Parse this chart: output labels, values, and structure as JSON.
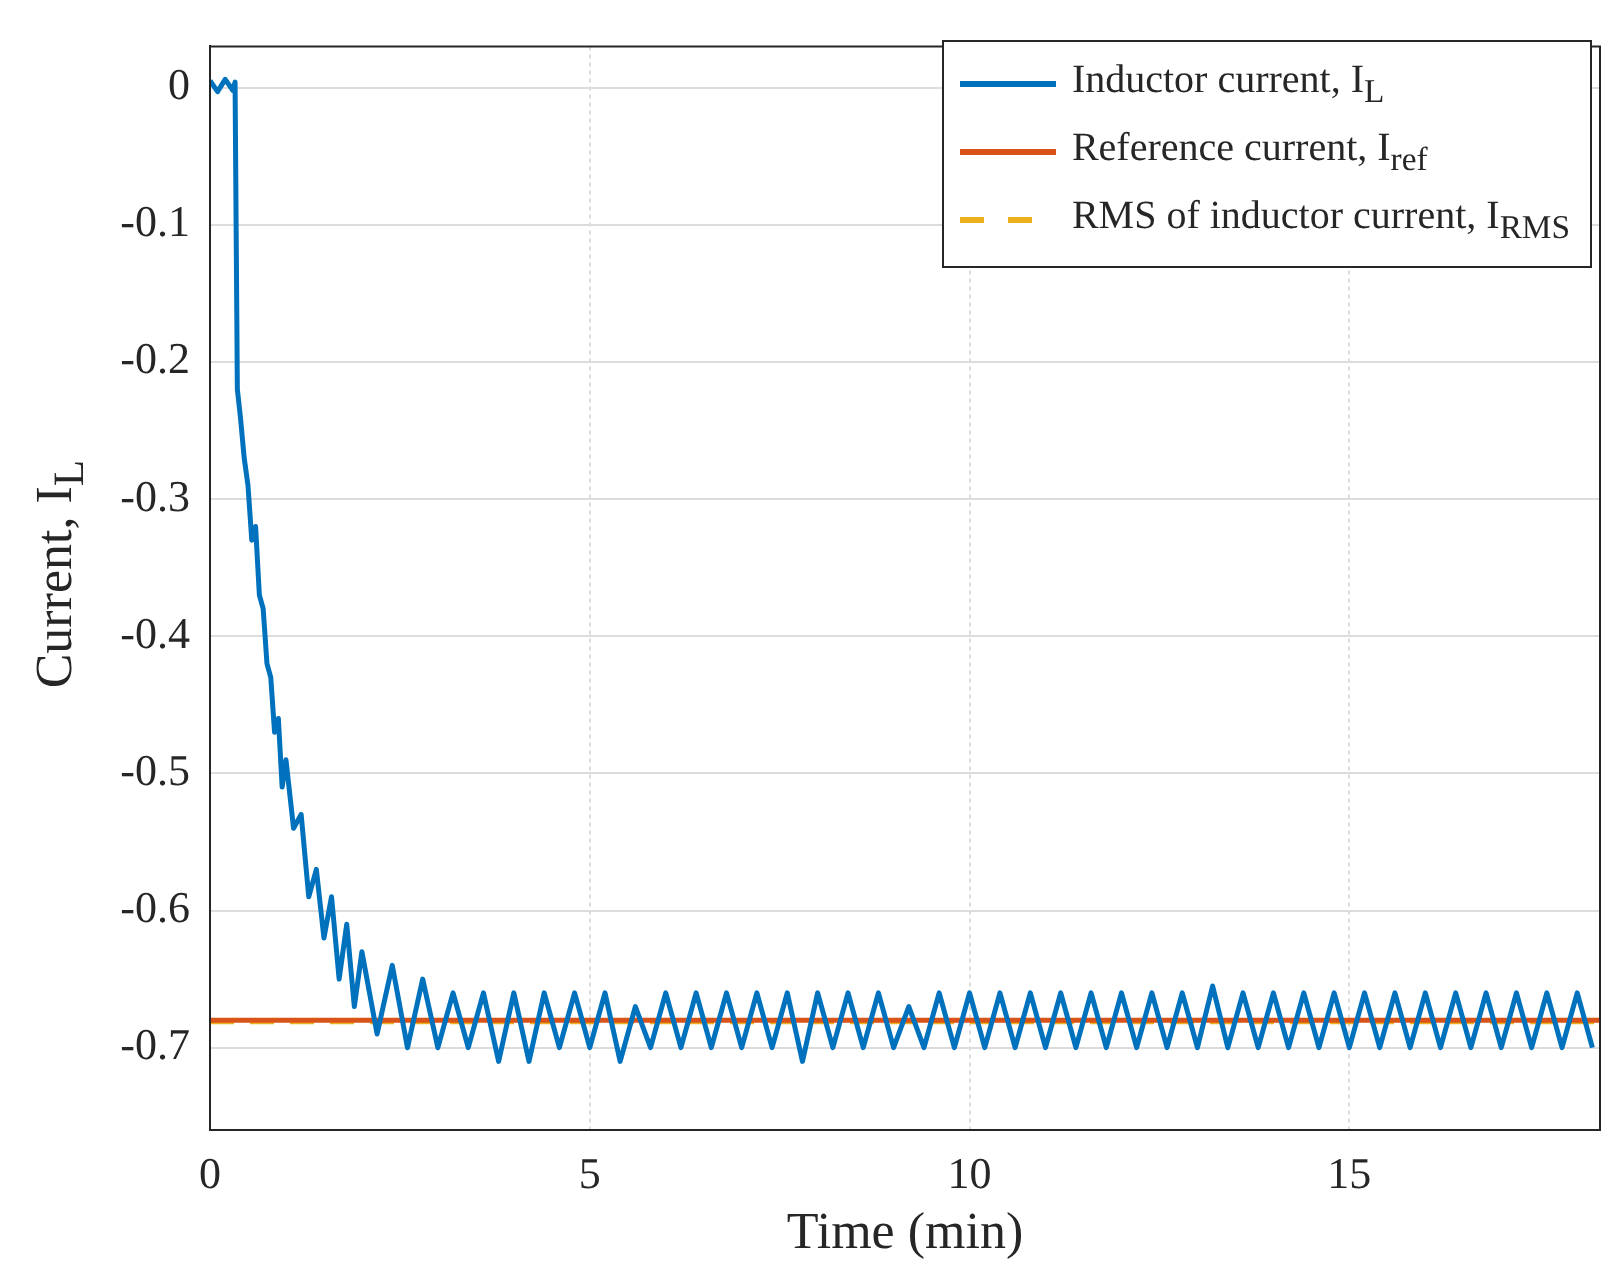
{
  "chart_data": {
    "type": "line",
    "xlabel": "Time (min)",
    "ylabel": "Current, I$_{L}$",
    "xlim": [
      0,
      18.3
    ],
    "ylim": [
      -0.76,
      0.03
    ],
    "xticks": [
      0,
      5,
      10,
      15
    ],
    "yticks": [
      -0.7,
      -0.6,
      -0.5,
      -0.4,
      -0.3,
      -0.2,
      -0.1,
      0
    ],
    "grid": true,
    "legend": "top right",
    "marker": "none",
    "series": [
      {
        "name": "Inductor current, I$_{L}$",
        "color": "#0072bd",
        "line_style": "solid",
        "x": [
          0,
          0.1,
          0.2,
          0.3,
          0.33,
          0.36,
          0.4,
          0.45,
          0.5,
          0.55,
          0.6,
          0.65,
          0.7,
          0.75,
          0.8,
          0.85,
          0.9,
          0.95,
          1.0,
          1.1,
          1.2,
          1.3,
          1.4,
          1.5,
          1.6,
          1.7,
          1.8,
          1.9,
          2.0,
          2.2,
          2.4,
          2.6,
          2.8,
          3.0,
          3.2,
          3.4,
          3.6,
          3.8,
          4.0,
          4.2,
          4.4,
          4.6,
          4.8,
          5.0,
          5.2,
          5.4,
          5.6,
          5.8,
          6.0,
          6.2,
          6.4,
          6.6,
          6.8,
          7.0,
          7.2,
          7.4,
          7.6,
          7.8,
          8.0,
          8.2,
          8.4,
          8.6,
          8.8,
          9.0,
          9.2,
          9.4,
          9.6,
          9.8,
          10.0,
          10.2,
          10.4,
          10.6,
          10.8,
          11.0,
          11.2,
          11.4,
          11.6,
          11.8,
          12.0,
          12.2,
          12.4,
          12.6,
          12.8,
          13.0,
          13.2,
          13.4,
          13.6,
          13.8,
          14.0,
          14.2,
          14.4,
          14.6,
          14.8,
          15.0,
          15.2,
          15.4,
          15.6,
          15.8,
          16.0,
          16.2,
          16.4,
          16.6,
          16.8,
          17.0,
          17.2,
          17.4,
          17.6,
          17.8,
          18.0,
          18.2
        ],
        "values": [
          0.005,
          -0.003,
          0.006,
          -0.002,
          0.004,
          -0.22,
          -0.24,
          -0.27,
          -0.29,
          -0.33,
          -0.32,
          -0.37,
          -0.38,
          -0.42,
          -0.43,
          -0.47,
          -0.46,
          -0.51,
          -0.49,
          -0.54,
          -0.53,
          -0.59,
          -0.57,
          -0.62,
          -0.59,
          -0.65,
          -0.61,
          -0.67,
          -0.63,
          -0.69,
          -0.64,
          -0.7,
          -0.65,
          -0.7,
          -0.66,
          -0.7,
          -0.66,
          -0.71,
          -0.66,
          -0.71,
          -0.66,
          -0.7,
          -0.66,
          -0.7,
          -0.66,
          -0.71,
          -0.67,
          -0.7,
          -0.66,
          -0.7,
          -0.66,
          -0.7,
          -0.66,
          -0.7,
          -0.66,
          -0.7,
          -0.66,
          -0.71,
          -0.66,
          -0.7,
          -0.66,
          -0.7,
          -0.66,
          -0.7,
          -0.67,
          -0.7,
          -0.66,
          -0.7,
          -0.66,
          -0.7,
          -0.66,
          -0.7,
          -0.66,
          -0.7,
          -0.66,
          -0.7,
          -0.66,
          -0.7,
          -0.66,
          -0.7,
          -0.66,
          -0.7,
          -0.66,
          -0.7,
          -0.655,
          -0.7,
          -0.66,
          -0.7,
          -0.66,
          -0.7,
          -0.66,
          -0.7,
          -0.66,
          -0.7,
          -0.66,
          -0.7,
          -0.66,
          -0.7,
          -0.66,
          -0.7,
          -0.66,
          -0.7,
          -0.66,
          -0.7,
          -0.66,
          -0.7,
          -0.66,
          -0.7,
          -0.66,
          -0.7
        ]
      },
      {
        "name": "Reference current, I$_{ref}$",
        "color": "#d95319",
        "line_style": "solid",
        "x": [
          0,
          18.3
        ],
        "values": [
          -0.68,
          -0.68
        ]
      },
      {
        "name": "RMS of inductor current, I$_{RMS}$",
        "color": "#edb120",
        "line_style": "dashed",
        "x": [
          0,
          18.3
        ],
        "values": [
          -0.681,
          -0.681
        ]
      }
    ]
  }
}
